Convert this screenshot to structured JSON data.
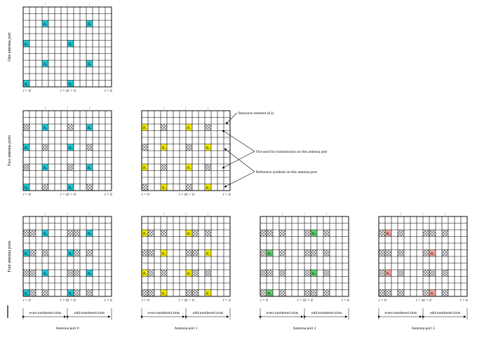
{
  "rows": [
    {
      "label": "One antenna port",
      "panels": [
        {
          "port": 0
        }
      ]
    },
    {
      "label": "Two antenna ports",
      "panels": [
        {
          "port": 0
        },
        {
          "port": 1
        }
      ]
    },
    {
      "label": "Four antenna ports",
      "panels": [
        {
          "port": 0
        },
        {
          "port": 1
        },
        {
          "port": 2
        },
        {
          "port": 3
        }
      ]
    }
  ],
  "ports": [
    {
      "rs_label": "R₀",
      "color": "#22c6d6"
    },
    {
      "rs_label": "R₁",
      "color": "#f2ea00"
    },
    {
      "rs_label": "R₂",
      "color": "#5fd06c"
    },
    {
      "rs_label": "R₃",
      "color": "#f2a49a"
    }
  ],
  "tick_labels": [
    "l = 0",
    "l = 6",
    "l = 0",
    "l = 6"
  ],
  "annotations": {
    "resource_element": "Resource element (k,l)",
    "not_used": "Not used for transmission on this antenna port",
    "reference_symbols": "Reference symbols on this antenna port"
  },
  "slot_labels": {
    "even": "even-numbered slots",
    "odd": "odd-numbered slots"
  },
  "captions": [
    "Antenna port 0",
    "Antenna port 1",
    "Antenna port 2",
    "Antenna port 3"
  ],
  "colors": {
    "grid_line": "#000000",
    "cross": "#444444"
  }
}
